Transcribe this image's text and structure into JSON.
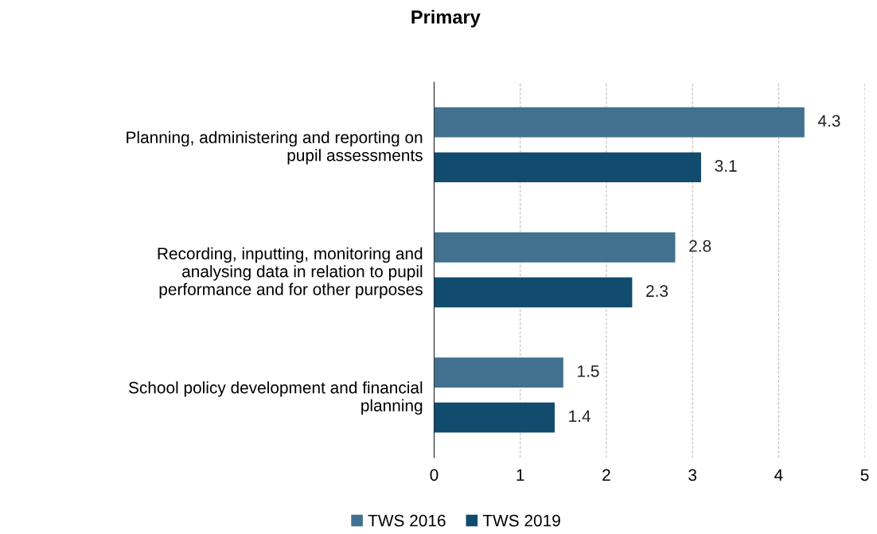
{
  "chart_data": {
    "type": "bar",
    "orientation": "horizontal",
    "title": "Primary",
    "categories": [
      "Planning, administering and reporting on\npupil assessments",
      "Recording, inputting, monitoring and\nanalysing data in relation to pupil\nperformance and for other purposes",
      "School policy development and financial\nplanning"
    ],
    "series": [
      {
        "name": "TWS 2016",
        "color": "#41718f",
        "values": [
          4.3,
          2.8,
          1.5
        ]
      },
      {
        "name": "TWS 2019",
        "color": "#114b6e",
        "values": [
          3.1,
          2.3,
          1.4
        ]
      }
    ],
    "xlim": [
      0,
      5
    ],
    "xticks": [
      0,
      1,
      2,
      3,
      4,
      5
    ],
    "grid": "x",
    "legend": "bottom",
    "data_labels": true
  }
}
